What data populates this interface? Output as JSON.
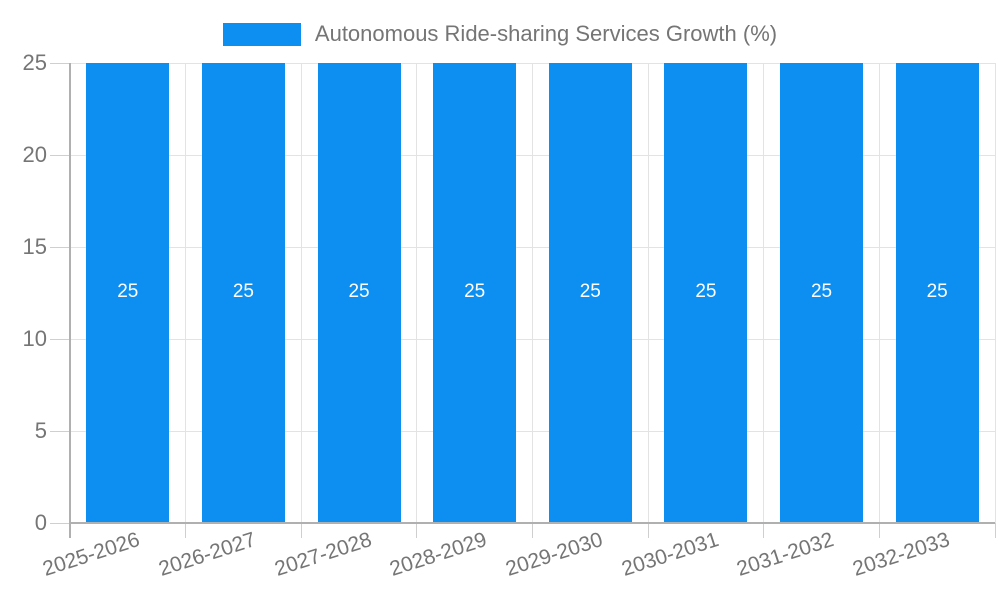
{
  "legend": {
    "label": "Autonomous Ride-sharing Services Growth (%)"
  },
  "chart_data": {
    "type": "bar",
    "title": "Autonomous Ride-sharing Services Growth (%)",
    "categories": [
      "2025-2026",
      "2026-2027",
      "2027-2028",
      "2028-2029",
      "2029-2030",
      "2030-2031",
      "2031-2032",
      "2032-2033"
    ],
    "values": [
      25,
      25,
      25,
      25,
      25,
      25,
      25,
      25
    ],
    "xlabel": "",
    "ylabel": "",
    "ylim": [
      0,
      25
    ],
    "yticks": [
      0,
      5,
      10,
      15,
      20,
      25
    ],
    "grid": true,
    "legend_position": "top",
    "bar_color": "#0d8ff2",
    "data_label_color": "#ffffff",
    "axis_text_color": "#757575",
    "gridline_color": "#e3e3e3",
    "tick_color": "#cfcfcf",
    "axis_line_color": "#b0b0b0",
    "background_color": "#ffffff"
  }
}
